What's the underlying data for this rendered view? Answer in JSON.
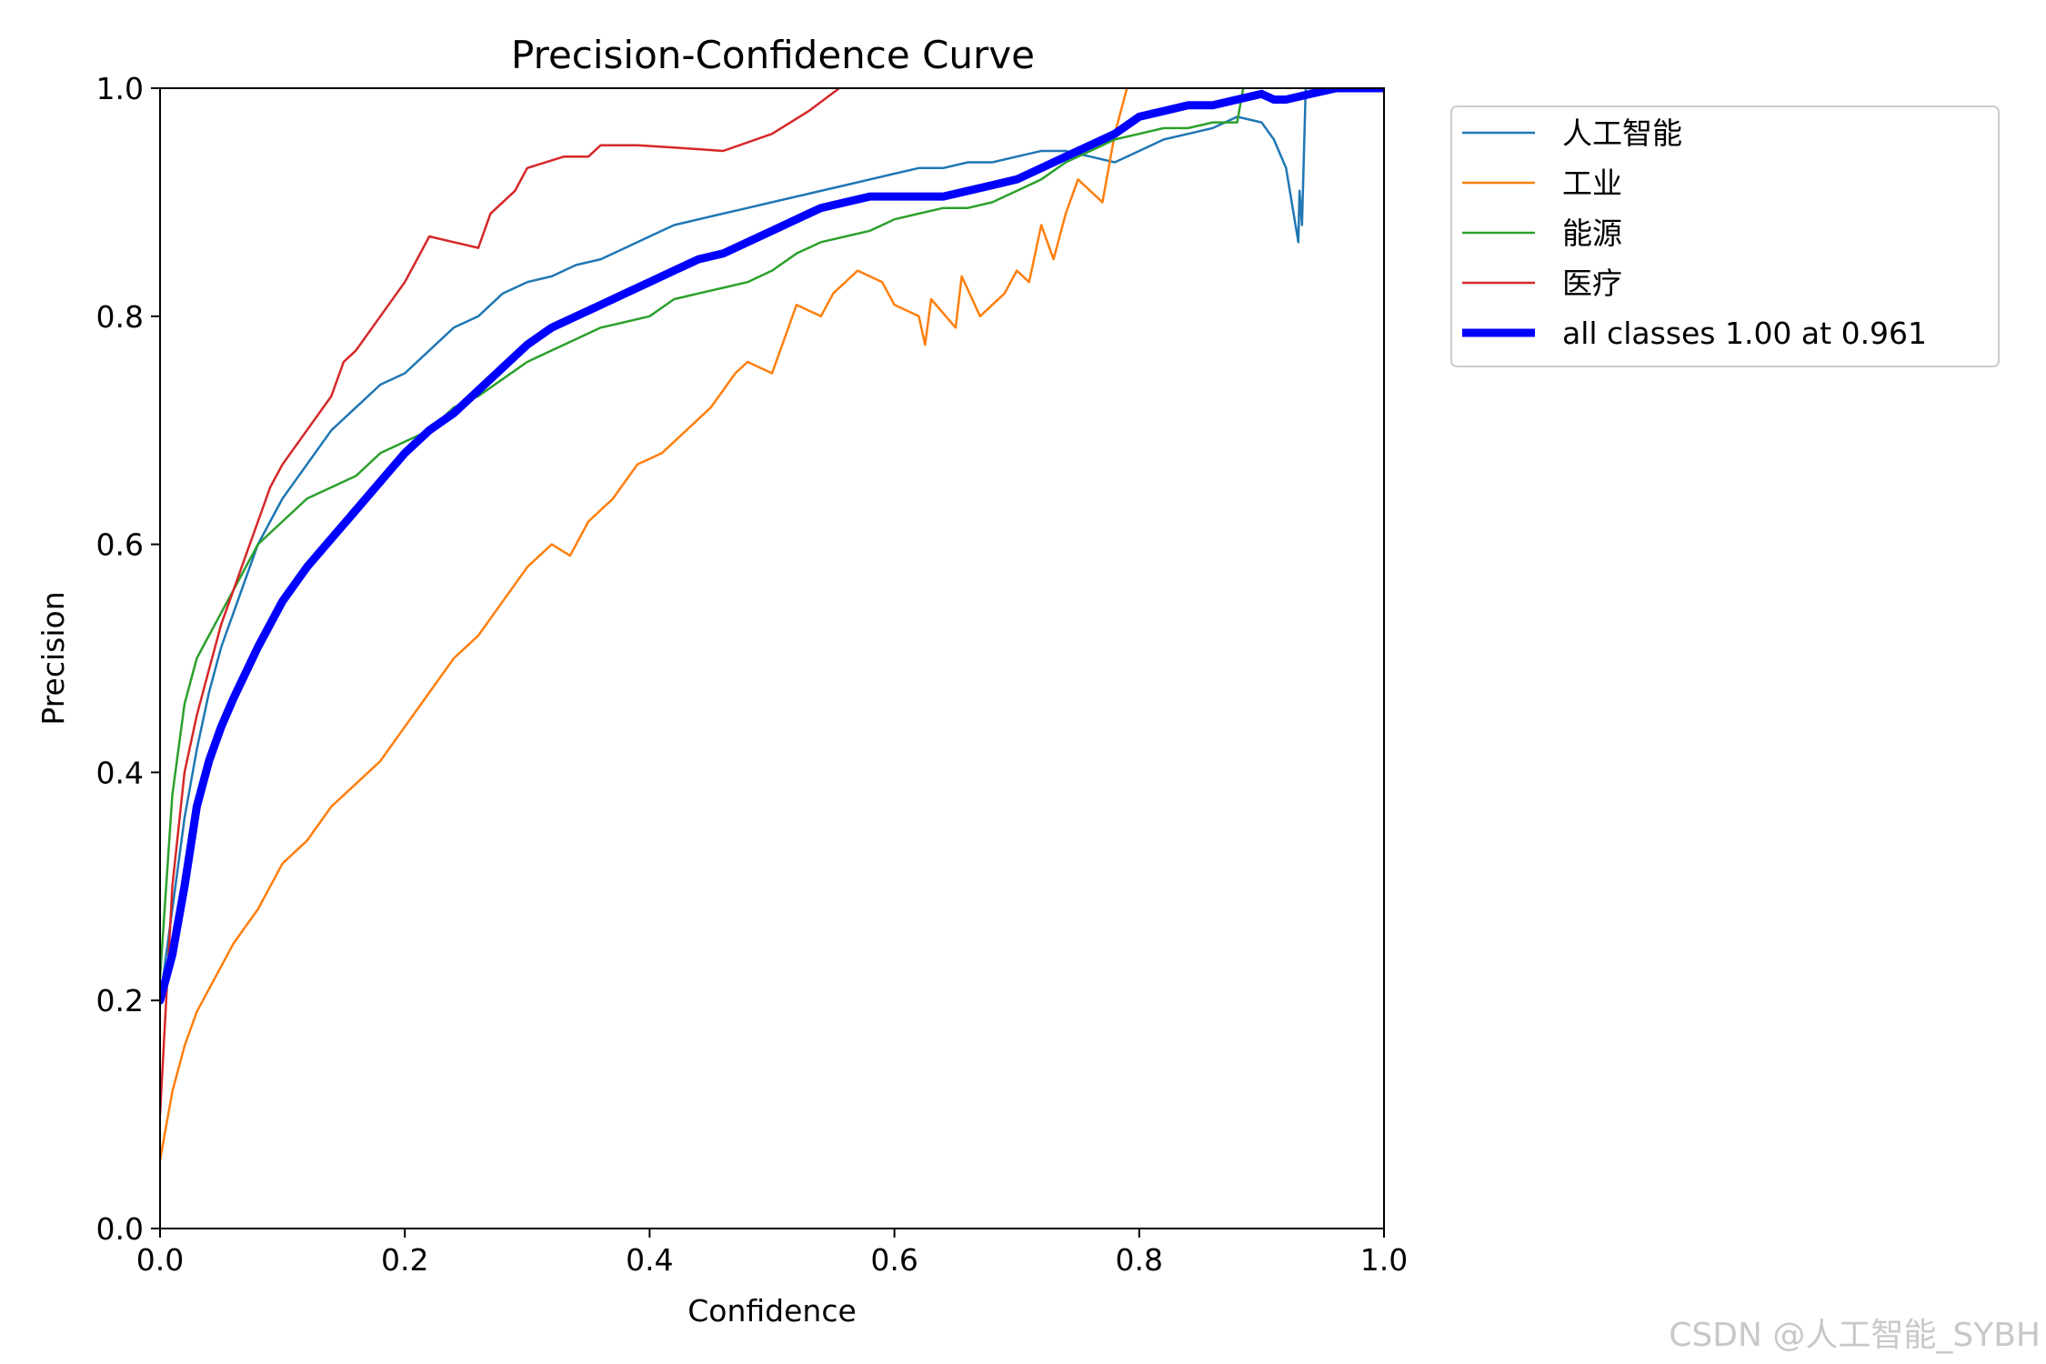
{
  "chart_data": {
    "type": "line",
    "title": "Precision-Confidence Curve",
    "xlabel": "Confidence",
    "ylabel": "Precision",
    "xlim": [
      0.0,
      1.0
    ],
    "ylim": [
      0.0,
      1.0
    ],
    "xticks": [
      "0.0",
      "0.2",
      "0.4",
      "0.6",
      "0.8",
      "1.0"
    ],
    "yticks": [
      "0.0",
      "0.2",
      "0.4",
      "0.6",
      "0.8",
      "1.0"
    ],
    "grid": false,
    "legend_position": "outside-top-right",
    "series": [
      {
        "name": "人工智能",
        "color": "#1f77b4",
        "thick": false,
        "points": [
          [
            0.0,
            0.2
          ],
          [
            0.01,
            0.28
          ],
          [
            0.02,
            0.36
          ],
          [
            0.03,
            0.42
          ],
          [
            0.04,
            0.47
          ],
          [
            0.05,
            0.51
          ],
          [
            0.06,
            0.54
          ],
          [
            0.07,
            0.57
          ],
          [
            0.08,
            0.6
          ],
          [
            0.09,
            0.62
          ],
          [
            0.1,
            0.64
          ],
          [
            0.12,
            0.67
          ],
          [
            0.14,
            0.7
          ],
          [
            0.16,
            0.72
          ],
          [
            0.18,
            0.74
          ],
          [
            0.2,
            0.75
          ],
          [
            0.22,
            0.77
          ],
          [
            0.24,
            0.79
          ],
          [
            0.26,
            0.8
          ],
          [
            0.28,
            0.82
          ],
          [
            0.3,
            0.83
          ],
          [
            0.32,
            0.835
          ],
          [
            0.34,
            0.845
          ],
          [
            0.36,
            0.85
          ],
          [
            0.38,
            0.86
          ],
          [
            0.4,
            0.87
          ],
          [
            0.42,
            0.88
          ],
          [
            0.44,
            0.885
          ],
          [
            0.46,
            0.89
          ],
          [
            0.48,
            0.895
          ],
          [
            0.5,
            0.9
          ],
          [
            0.52,
            0.905
          ],
          [
            0.54,
            0.91
          ],
          [
            0.56,
            0.915
          ],
          [
            0.58,
            0.92
          ],
          [
            0.6,
            0.925
          ],
          [
            0.62,
            0.93
          ],
          [
            0.64,
            0.93
          ],
          [
            0.66,
            0.935
          ],
          [
            0.68,
            0.935
          ],
          [
            0.7,
            0.94
          ],
          [
            0.72,
            0.945
          ],
          [
            0.74,
            0.945
          ],
          [
            0.76,
            0.94
          ],
          [
            0.78,
            0.935
          ],
          [
            0.8,
            0.945
          ],
          [
            0.82,
            0.955
          ],
          [
            0.84,
            0.96
          ],
          [
            0.86,
            0.965
          ],
          [
            0.88,
            0.975
          ],
          [
            0.9,
            0.97
          ],
          [
            0.91,
            0.955
          ],
          [
            0.92,
            0.93
          ],
          [
            0.93,
            0.865
          ],
          [
            0.931,
            0.91
          ],
          [
            0.933,
            0.88
          ],
          [
            0.936,
            1.0
          ],
          [
            0.96,
            1.0
          ],
          [
            1.0,
            1.0
          ]
        ]
      },
      {
        "name": "工业",
        "color": "#ff7f0e",
        "thick": false,
        "points": [
          [
            0.0,
            0.06
          ],
          [
            0.01,
            0.12
          ],
          [
            0.02,
            0.16
          ],
          [
            0.03,
            0.19
          ],
          [
            0.04,
            0.21
          ],
          [
            0.05,
            0.23
          ],
          [
            0.06,
            0.25
          ],
          [
            0.07,
            0.265
          ],
          [
            0.08,
            0.28
          ],
          [
            0.09,
            0.3
          ],
          [
            0.1,
            0.32
          ],
          [
            0.12,
            0.34
          ],
          [
            0.14,
            0.37
          ],
          [
            0.16,
            0.39
          ],
          [
            0.18,
            0.41
          ],
          [
            0.2,
            0.44
          ],
          [
            0.22,
            0.47
          ],
          [
            0.24,
            0.5
          ],
          [
            0.26,
            0.52
          ],
          [
            0.28,
            0.55
          ],
          [
            0.3,
            0.58
          ],
          [
            0.32,
            0.6
          ],
          [
            0.335,
            0.59
          ],
          [
            0.35,
            0.62
          ],
          [
            0.37,
            0.64
          ],
          [
            0.39,
            0.67
          ],
          [
            0.41,
            0.68
          ],
          [
            0.43,
            0.7
          ],
          [
            0.45,
            0.72
          ],
          [
            0.47,
            0.75
          ],
          [
            0.48,
            0.76
          ],
          [
            0.5,
            0.75
          ],
          [
            0.51,
            0.78
          ],
          [
            0.52,
            0.81
          ],
          [
            0.54,
            0.8
          ],
          [
            0.55,
            0.82
          ],
          [
            0.57,
            0.84
          ],
          [
            0.59,
            0.83
          ],
          [
            0.6,
            0.81
          ],
          [
            0.62,
            0.8
          ],
          [
            0.625,
            0.775
          ],
          [
            0.63,
            0.815
          ],
          [
            0.65,
            0.79
          ],
          [
            0.655,
            0.835
          ],
          [
            0.67,
            0.8
          ],
          [
            0.69,
            0.82
          ],
          [
            0.7,
            0.84
          ],
          [
            0.71,
            0.83
          ],
          [
            0.72,
            0.88
          ],
          [
            0.73,
            0.85
          ],
          [
            0.74,
            0.89
          ],
          [
            0.75,
            0.92
          ],
          [
            0.77,
            0.9
          ],
          [
            0.78,
            0.96
          ],
          [
            0.79,
            1.0
          ]
        ]
      },
      {
        "name": "能源",
        "color": "#2ca02c",
        "thick": false,
        "points": [
          [
            0.0,
            0.22
          ],
          [
            0.01,
            0.38
          ],
          [
            0.02,
            0.46
          ],
          [
            0.03,
            0.5
          ],
          [
            0.04,
            0.52
          ],
          [
            0.05,
            0.54
          ],
          [
            0.06,
            0.56
          ],
          [
            0.07,
            0.58
          ],
          [
            0.08,
            0.6
          ],
          [
            0.1,
            0.62
          ],
          [
            0.12,
            0.64
          ],
          [
            0.14,
            0.65
          ],
          [
            0.16,
            0.66
          ],
          [
            0.18,
            0.68
          ],
          [
            0.2,
            0.69
          ],
          [
            0.22,
            0.7
          ],
          [
            0.24,
            0.72
          ],
          [
            0.26,
            0.73
          ],
          [
            0.28,
            0.745
          ],
          [
            0.3,
            0.76
          ],
          [
            0.32,
            0.77
          ],
          [
            0.34,
            0.78
          ],
          [
            0.36,
            0.79
          ],
          [
            0.38,
            0.795
          ],
          [
            0.4,
            0.8
          ],
          [
            0.42,
            0.815
          ],
          [
            0.44,
            0.82
          ],
          [
            0.46,
            0.825
          ],
          [
            0.48,
            0.83
          ],
          [
            0.5,
            0.84
          ],
          [
            0.52,
            0.855
          ],
          [
            0.54,
            0.865
          ],
          [
            0.56,
            0.87
          ],
          [
            0.58,
            0.875
          ],
          [
            0.6,
            0.885
          ],
          [
            0.62,
            0.89
          ],
          [
            0.64,
            0.895
          ],
          [
            0.66,
            0.895
          ],
          [
            0.68,
            0.9
          ],
          [
            0.7,
            0.91
          ],
          [
            0.72,
            0.92
          ],
          [
            0.74,
            0.935
          ],
          [
            0.76,
            0.945
          ],
          [
            0.78,
            0.955
          ],
          [
            0.8,
            0.96
          ],
          [
            0.82,
            0.965
          ],
          [
            0.84,
            0.965
          ],
          [
            0.86,
            0.97
          ],
          [
            0.88,
            0.97
          ],
          [
            0.885,
            1.0
          ]
        ]
      },
      {
        "name": "医疗",
        "color": "#d62728",
        "thick": false,
        "points": [
          [
            0.0,
            0.1
          ],
          [
            0.01,
            0.3
          ],
          [
            0.02,
            0.4
          ],
          [
            0.03,
            0.45
          ],
          [
            0.04,
            0.49
          ],
          [
            0.05,
            0.53
          ],
          [
            0.06,
            0.56
          ],
          [
            0.07,
            0.59
          ],
          [
            0.08,
            0.62
          ],
          [
            0.09,
            0.65
          ],
          [
            0.1,
            0.67
          ],
          [
            0.12,
            0.7
          ],
          [
            0.14,
            0.73
          ],
          [
            0.15,
            0.76
          ],
          [
            0.16,
            0.77
          ],
          [
            0.18,
            0.8
          ],
          [
            0.2,
            0.83
          ],
          [
            0.21,
            0.85
          ],
          [
            0.22,
            0.87
          ],
          [
            0.24,
            0.865
          ],
          [
            0.26,
            0.86
          ],
          [
            0.27,
            0.89
          ],
          [
            0.29,
            0.91
          ],
          [
            0.3,
            0.93
          ],
          [
            0.33,
            0.94
          ],
          [
            0.35,
            0.94
          ],
          [
            0.36,
            0.95
          ],
          [
            0.39,
            0.95
          ],
          [
            0.42,
            0.948
          ],
          [
            0.46,
            0.945
          ],
          [
            0.5,
            0.96
          ],
          [
            0.53,
            0.98
          ],
          [
            0.555,
            1.0
          ]
        ]
      },
      {
        "name": "all classes 1.00 at 0.961",
        "color": "#0000ff",
        "thick": true,
        "points": [
          [
            0.0,
            0.2
          ],
          [
            0.01,
            0.24
          ],
          [
            0.02,
            0.3
          ],
          [
            0.03,
            0.37
          ],
          [
            0.04,
            0.41
          ],
          [
            0.05,
            0.44
          ],
          [
            0.06,
            0.465
          ],
          [
            0.08,
            0.51
          ],
          [
            0.1,
            0.55
          ],
          [
            0.12,
            0.58
          ],
          [
            0.14,
            0.605
          ],
          [
            0.16,
            0.63
          ],
          [
            0.18,
            0.655
          ],
          [
            0.2,
            0.68
          ],
          [
            0.22,
            0.7
          ],
          [
            0.24,
            0.715
          ],
          [
            0.26,
            0.735
          ],
          [
            0.28,
            0.755
          ],
          [
            0.3,
            0.775
          ],
          [
            0.32,
            0.79
          ],
          [
            0.34,
            0.8
          ],
          [
            0.36,
            0.81
          ],
          [
            0.38,
            0.82
          ],
          [
            0.4,
            0.83
          ],
          [
            0.42,
            0.84
          ],
          [
            0.44,
            0.85
          ],
          [
            0.46,
            0.855
          ],
          [
            0.48,
            0.865
          ],
          [
            0.5,
            0.875
          ],
          [
            0.52,
            0.885
          ],
          [
            0.54,
            0.895
          ],
          [
            0.56,
            0.9
          ],
          [
            0.58,
            0.905
          ],
          [
            0.6,
            0.905
          ],
          [
            0.62,
            0.905
          ],
          [
            0.64,
            0.905
          ],
          [
            0.66,
            0.91
          ],
          [
            0.68,
            0.915
          ],
          [
            0.7,
            0.92
          ],
          [
            0.72,
            0.93
          ],
          [
            0.74,
            0.94
          ],
          [
            0.76,
            0.95
          ],
          [
            0.78,
            0.96
          ],
          [
            0.8,
            0.975
          ],
          [
            0.82,
            0.98
          ],
          [
            0.84,
            0.985
          ],
          [
            0.86,
            0.985
          ],
          [
            0.88,
            0.99
          ],
          [
            0.9,
            0.995
          ],
          [
            0.91,
            0.99
          ],
          [
            0.92,
            0.99
          ],
          [
            0.94,
            0.995
          ],
          [
            0.961,
            1.0
          ],
          [
            1.0,
            1.0
          ]
        ]
      }
    ]
  },
  "watermark": "CSDN @人工智能_SYBH"
}
